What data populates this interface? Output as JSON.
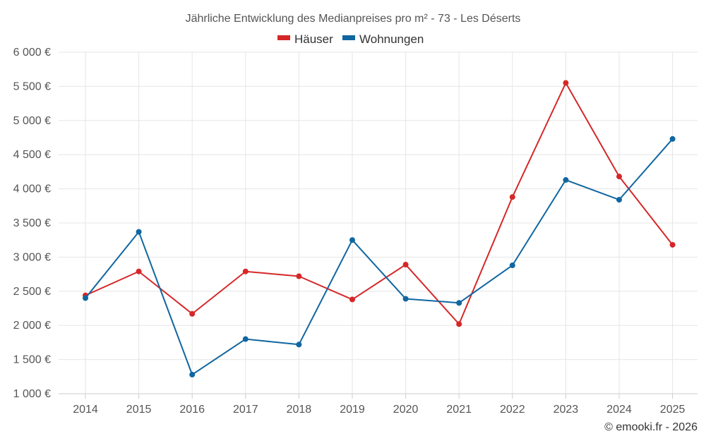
{
  "chart_data": {
    "type": "line",
    "title": "Jährliche Entwicklung des Medianpreises pro m² - 73 - Les Déserts",
    "categories": [
      "2014",
      "2015",
      "2016",
      "2017",
      "2018",
      "2019",
      "2020",
      "2021",
      "2022",
      "2023",
      "2024",
      "2025"
    ],
    "series": [
      {
        "name": "Häuser",
        "color": "#d62728",
        "values": [
          2440,
          2790,
          2170,
          2790,
          2720,
          2380,
          2890,
          2020,
          3880,
          5550,
          4180,
          3180
        ]
      },
      {
        "name": "Wohnungen",
        "color": "#1066a0",
        "values": [
          2400,
          3370,
          1280,
          1800,
          1720,
          3250,
          2390,
          2330,
          2880,
          4130,
          3840,
          4730
        ]
      }
    ],
    "y_ticks": [
      1000,
      1500,
      2000,
      2500,
      3000,
      3500,
      4000,
      4500,
      5000,
      5500,
      6000
    ],
    "y_tick_labels": [
      "1 000 €",
      "1 500 €",
      "2 000 €",
      "2 500 €",
      "3 000 €",
      "3 500 €",
      "4 000 €",
      "4 500 €",
      "5 000 €",
      "5 500 €",
      "6 000 €"
    ],
    "ylim": [
      1000,
      6000
    ],
    "xlabel": "",
    "ylabel": "",
    "grid": true,
    "legend_position": "top-center"
  },
  "credit": "© emooki.fr - 2026"
}
